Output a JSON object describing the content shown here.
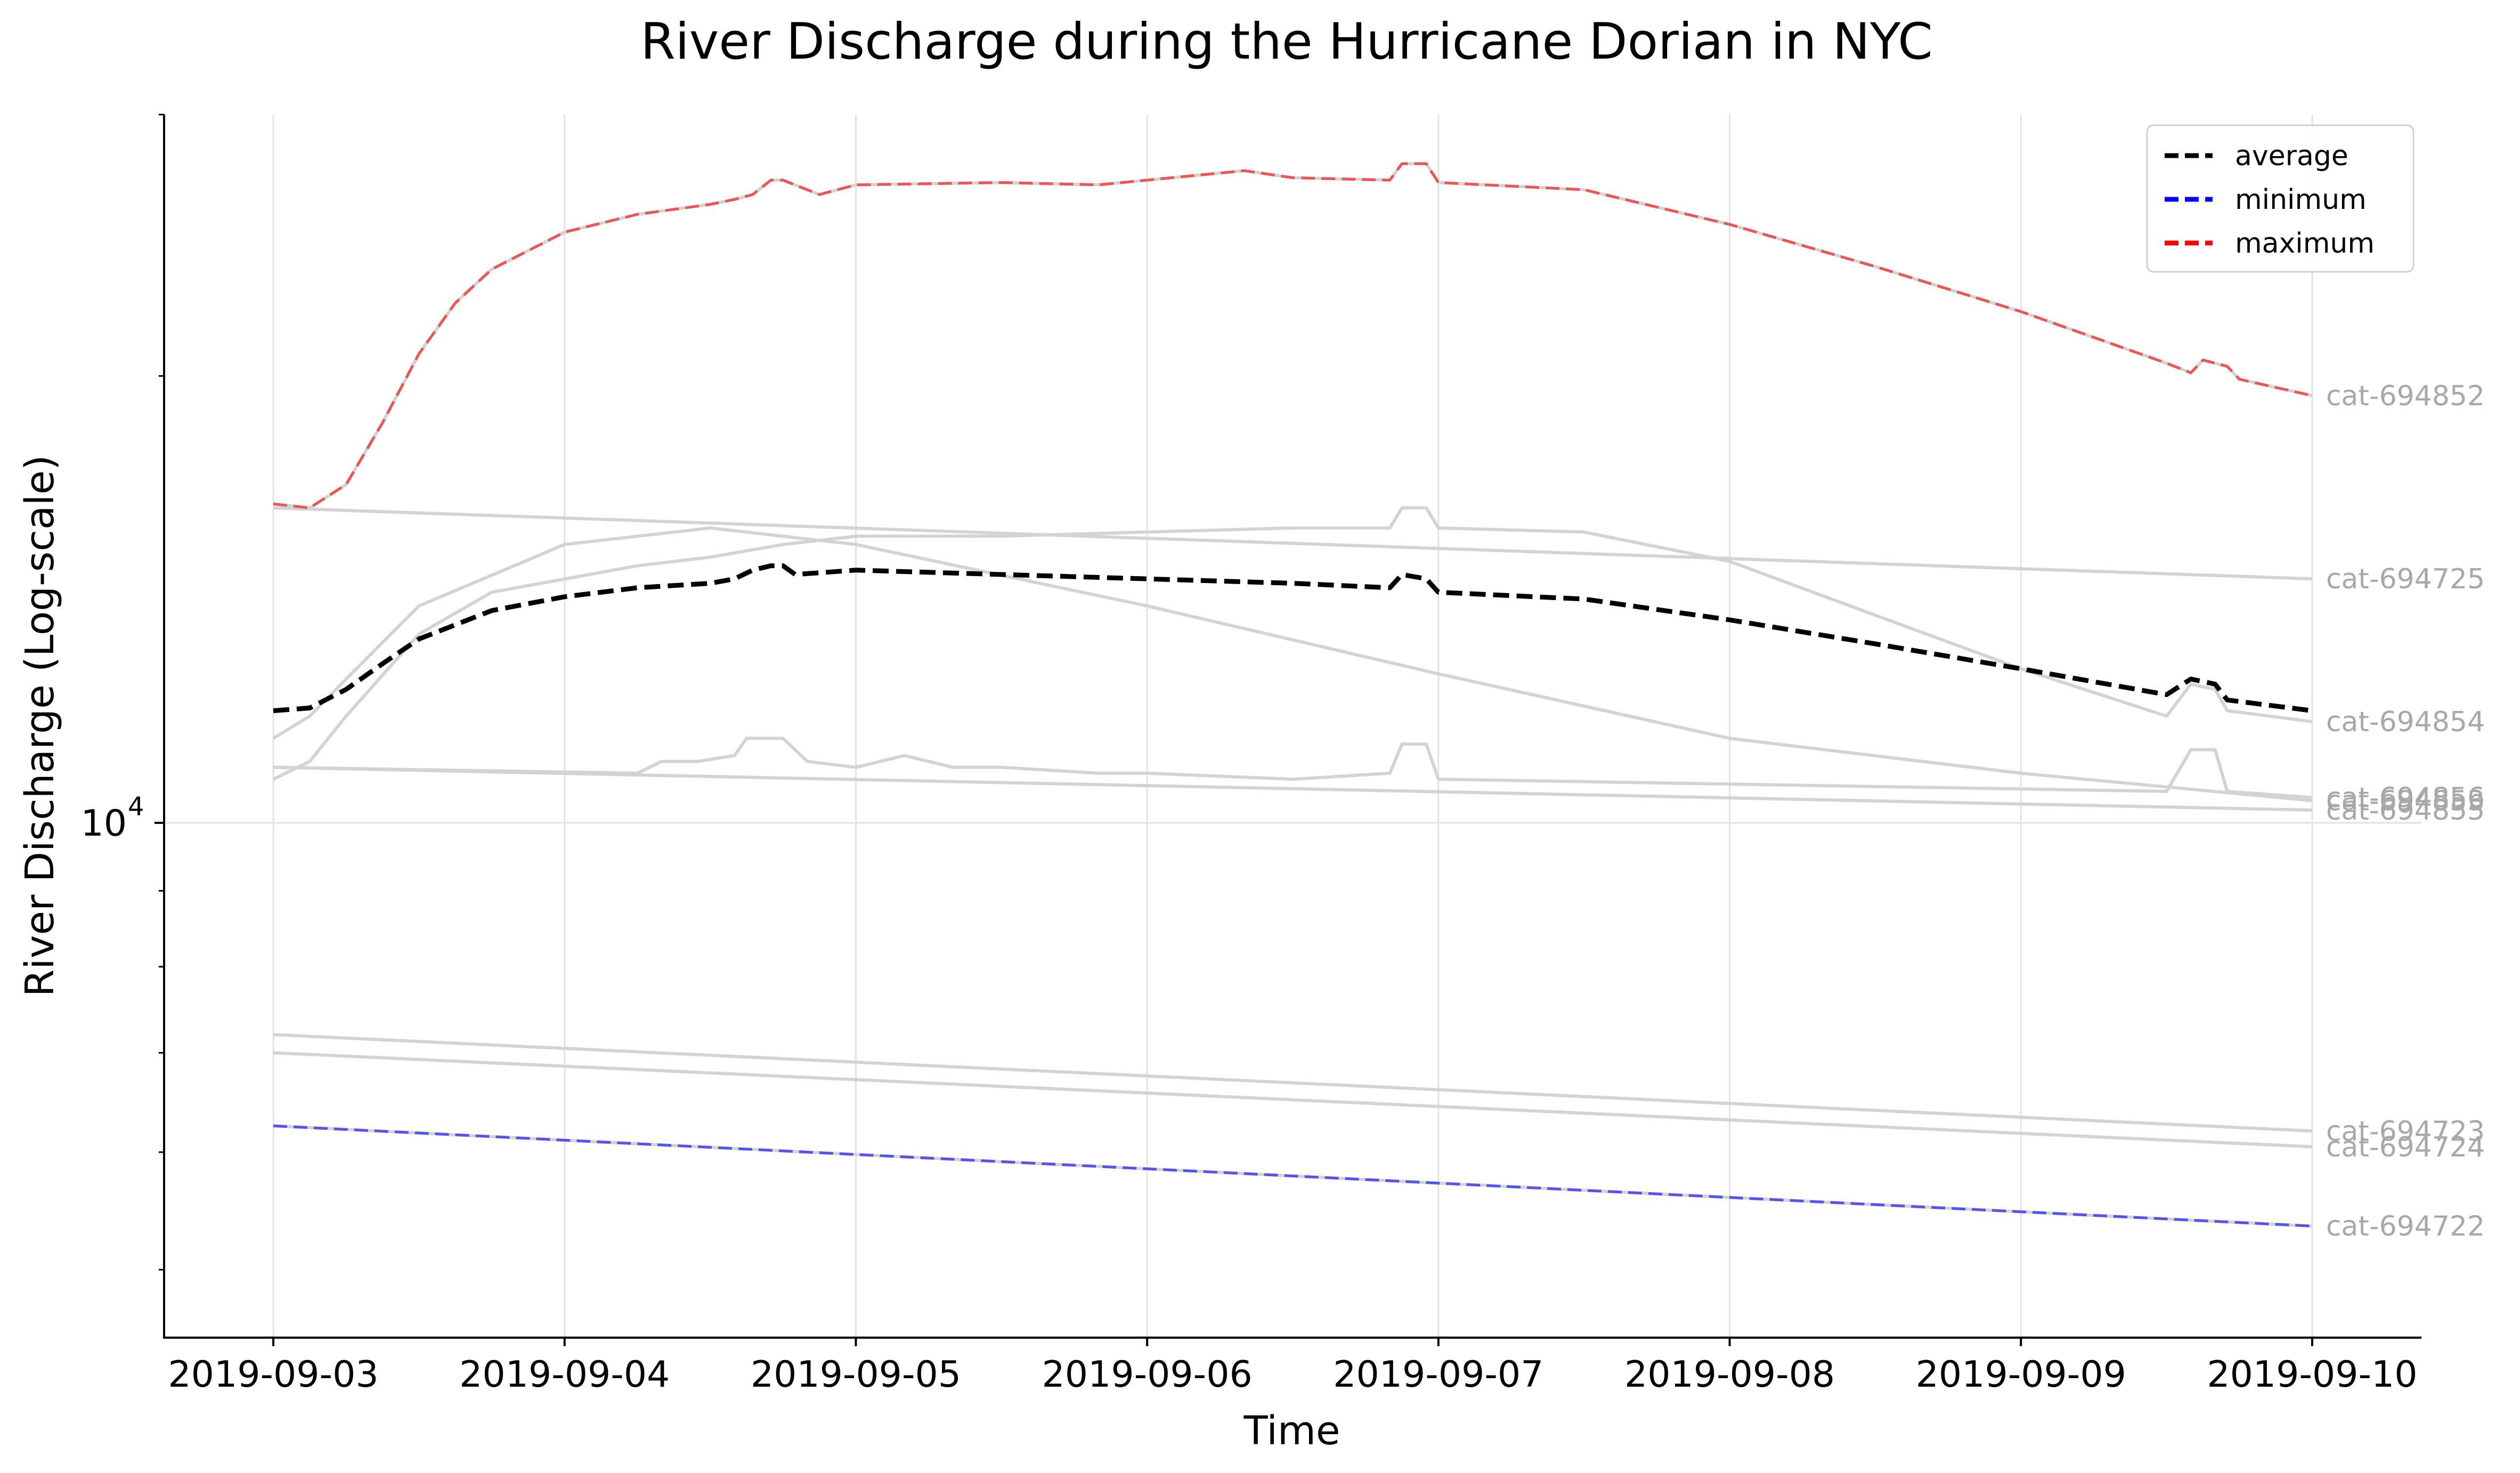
{
  "chart_data": {
    "type": "line",
    "title": "River Discharge during the Hurricane Dorian in NYC",
    "xlabel": "Time",
    "ylabel": "River Discharge (Log-scale)",
    "yscale": "log",
    "ylim": [
      4500,
      30000
    ],
    "xlim": [
      "2019-09-02T15:00",
      "2019-09-10T09:00"
    ],
    "x_ticks": [
      "2019-09-03",
      "2019-09-04",
      "2019-09-05",
      "2019-09-06",
      "2019-09-07",
      "2019-09-08",
      "2019-09-09",
      "2019-09-10"
    ],
    "y_ticks": [
      {
        "value": 10000,
        "base": "10",
        "exp": "4"
      }
    ],
    "grid": true,
    "legend": {
      "position": "top-right",
      "entries": [
        {
          "label": "average",
          "color": "#000000"
        },
        {
          "label": "minimum",
          "color": "#0000ff"
        },
        {
          "label": "maximum",
          "color": "#ff0000"
        }
      ]
    },
    "series": [
      {
        "name": "cat-694852",
        "color": "#d3d3d3",
        "dash": false,
        "points": [
          [
            "2019-09-03T00:00",
            16400
          ],
          [
            "2019-09-03T03:00",
            16300
          ],
          [
            "2019-09-03T06:00",
            16900
          ],
          [
            "2019-09-03T09:00",
            18600
          ],
          [
            "2019-09-03T12:00",
            20700
          ],
          [
            "2019-09-03T15:00",
            22400
          ],
          [
            "2019-09-03T18:00",
            23600
          ],
          [
            "2019-09-04T00:00",
            25000
          ],
          [
            "2019-09-04T06:00",
            25700
          ],
          [
            "2019-09-04T12:00",
            26100
          ],
          [
            "2019-09-04T14:00",
            26300
          ],
          [
            "2019-09-04T15:30",
            26500
          ],
          [
            "2019-09-04T17:00",
            27100
          ],
          [
            "2019-09-04T18:00",
            27100
          ],
          [
            "2019-09-04T21:00",
            26500
          ],
          [
            "2019-09-05T00:00",
            26900
          ],
          [
            "2019-09-05T12:00",
            27000
          ],
          [
            "2019-09-05T20:00",
            26900
          ],
          [
            "2019-09-06T00:00",
            27100
          ],
          [
            "2019-09-06T08:00",
            27500
          ],
          [
            "2019-09-06T12:00",
            27200
          ],
          [
            "2019-09-06T20:00",
            27100
          ],
          [
            "2019-09-06T21:00",
            27800
          ],
          [
            "2019-09-06T23:00",
            27800
          ],
          [
            "2019-09-07T00:00",
            27000
          ],
          [
            "2019-09-07T12:00",
            26700
          ],
          [
            "2019-09-08T00:00",
            25300
          ],
          [
            "2019-09-08T12:00",
            23700
          ],
          [
            "2019-09-09T00:00",
            22100
          ],
          [
            "2019-09-09T12:00",
            20400
          ],
          [
            "2019-09-09T14:00",
            20100
          ],
          [
            "2019-09-09T15:00",
            20500
          ],
          [
            "2019-09-09T17:00",
            20300
          ],
          [
            "2019-09-09T18:00",
            19900
          ],
          [
            "2019-09-10T00:00",
            19400
          ]
        ]
      },
      {
        "name": "cat-694725",
        "color": "#d3d3d3",
        "dash": false,
        "points": [
          [
            "2019-09-03T00:00",
            16300
          ],
          [
            "2019-09-10T00:00",
            14600
          ]
        ]
      },
      {
        "name": "cat-694853",
        "color": "#d3d3d3",
        "dash": false,
        "points": [
          [
            "2019-09-03T00:00",
            11400
          ],
          [
            "2019-09-03T03:00",
            11800
          ],
          [
            "2019-09-03T06:00",
            12500
          ],
          [
            "2019-09-03T12:00",
            14000
          ],
          [
            "2019-09-04T00:00",
            15400
          ],
          [
            "2019-09-04T12:00",
            15800
          ],
          [
            "2019-09-05T00:00",
            15400
          ],
          [
            "2019-09-06T00:00",
            14000
          ],
          [
            "2019-09-07T00:00",
            12600
          ],
          [
            "2019-09-08T00:00",
            11400
          ],
          [
            "2019-09-09T00:00",
            10800
          ],
          [
            "2019-09-10T00:00",
            10350
          ]
        ]
      },
      {
        "name": "cat-694856",
        "color": "#d3d3d3",
        "dash": false,
        "points": [
          [
            "2019-09-03T00:00",
            10900
          ],
          [
            "2019-09-04T06:00",
            10800
          ],
          [
            "2019-09-04T08:00",
            11000
          ],
          [
            "2019-09-04T11:00",
            11000
          ],
          [
            "2019-09-04T14:00",
            11100
          ],
          [
            "2019-09-04T15:00",
            11400
          ],
          [
            "2019-09-04T18:00",
            11400
          ],
          [
            "2019-09-04T20:00",
            11000
          ],
          [
            "2019-09-05T00:00",
            10900
          ],
          [
            "2019-09-05T04:00",
            11100
          ],
          [
            "2019-09-05T08:00",
            10900
          ],
          [
            "2019-09-05T12:00",
            10900
          ],
          [
            "2019-09-05T20:00",
            10800
          ],
          [
            "2019-09-06T00:00",
            10800
          ],
          [
            "2019-09-06T12:00",
            10700
          ],
          [
            "2019-09-06T20:00",
            10800
          ],
          [
            "2019-09-06T21:00",
            11300
          ],
          [
            "2019-09-06T23:00",
            11300
          ],
          [
            "2019-09-07T00:00",
            10700
          ],
          [
            "2019-09-09T12:00",
            10500
          ],
          [
            "2019-09-09T14:00",
            11200
          ],
          [
            "2019-09-09T16:00",
            11200
          ],
          [
            "2019-09-09T17:00",
            10500
          ],
          [
            "2019-09-10T00:00",
            10400
          ]
        ]
      },
      {
        "name": "cat-694854",
        "color": "#d3d3d3",
        "dash": false,
        "points": [
          [
            "2019-09-03T00:00",
            10700
          ],
          [
            "2019-09-03T03:00",
            11000
          ],
          [
            "2019-09-03T06:00",
            11800
          ],
          [
            "2019-09-03T12:00",
            13400
          ],
          [
            "2019-09-03T18:00",
            14300
          ],
          [
            "2019-09-04T06:00",
            14900
          ],
          [
            "2019-09-04T12:00",
            15100
          ],
          [
            "2019-09-04T18:00",
            15400
          ],
          [
            "2019-09-05T00:00",
            15600
          ],
          [
            "2019-09-05T12:00",
            15600
          ],
          [
            "2019-09-06T00:00",
            15700
          ],
          [
            "2019-09-06T12:00",
            15800
          ],
          [
            "2019-09-06T20:00",
            15800
          ],
          [
            "2019-09-06T21:00",
            16300
          ],
          [
            "2019-09-06T23:00",
            16300
          ],
          [
            "2019-09-07T00:00",
            15800
          ],
          [
            "2019-09-07T12:00",
            15700
          ],
          [
            "2019-09-08T00:00",
            15000
          ],
          [
            "2019-09-08T12:00",
            13800
          ],
          [
            "2019-09-09T00:00",
            12700
          ],
          [
            "2019-09-09T12:00",
            11800
          ],
          [
            "2019-09-09T14:00",
            12400
          ],
          [
            "2019-09-09T16:00",
            12300
          ],
          [
            "2019-09-09T17:00",
            11900
          ],
          [
            "2019-09-10T00:00",
            11700
          ]
        ]
      },
      {
        "name": "cat-694855",
        "color": "#d3d3d3",
        "dash": false,
        "points": [
          [
            "2019-09-03T00:00",
            10900
          ],
          [
            "2019-09-10T00:00",
            10200
          ]
        ]
      },
      {
        "name": "cat-694723",
        "color": "#d3d3d3",
        "dash": false,
        "points": [
          [
            "2019-09-03T00:00",
            7200
          ],
          [
            "2019-09-10T00:00",
            6200
          ]
        ]
      },
      {
        "name": "cat-694724",
        "color": "#d3d3d3",
        "dash": false,
        "points": [
          [
            "2019-09-03T00:00",
            7000
          ],
          [
            "2019-09-10T00:00",
            6050
          ]
        ]
      },
      {
        "name": "cat-694722",
        "color": "#d3d3d3",
        "dash": false,
        "points": [
          [
            "2019-09-03T00:00",
            6250
          ],
          [
            "2019-09-10T00:00",
            5350
          ]
        ]
      },
      {
        "name": "minimum",
        "color": "#0000ff",
        "dash": true,
        "points": [
          [
            "2019-09-03T00:00",
            6250
          ],
          [
            "2019-09-10T00:00",
            5350
          ]
        ]
      },
      {
        "name": "maximum",
        "color": "#ff0000",
        "dash": true,
        "points": [
          [
            "2019-09-03T00:00",
            16400
          ],
          [
            "2019-09-03T03:00",
            16300
          ],
          [
            "2019-09-03T06:00",
            16900
          ],
          [
            "2019-09-03T09:00",
            18600
          ],
          [
            "2019-09-03T12:00",
            20700
          ],
          [
            "2019-09-03T15:00",
            22400
          ],
          [
            "2019-09-03T18:00",
            23600
          ],
          [
            "2019-09-04T00:00",
            25000
          ],
          [
            "2019-09-04T06:00",
            25700
          ],
          [
            "2019-09-04T12:00",
            26100
          ],
          [
            "2019-09-04T14:00",
            26300
          ],
          [
            "2019-09-04T15:30",
            26500
          ],
          [
            "2019-09-04T17:00",
            27100
          ],
          [
            "2019-09-04T18:00",
            27100
          ],
          [
            "2019-09-04T21:00",
            26500
          ],
          [
            "2019-09-05T00:00",
            26900
          ],
          [
            "2019-09-05T12:00",
            27000
          ],
          [
            "2019-09-05T20:00",
            26900
          ],
          [
            "2019-09-06T00:00",
            27100
          ],
          [
            "2019-09-06T08:00",
            27500
          ],
          [
            "2019-09-06T12:00",
            27200
          ],
          [
            "2019-09-06T20:00",
            27100
          ],
          [
            "2019-09-06T21:00",
            27800
          ],
          [
            "2019-09-06T23:00",
            27800
          ],
          [
            "2019-09-07T00:00",
            27000
          ],
          [
            "2019-09-07T12:00",
            26700
          ],
          [
            "2019-09-08T00:00",
            25300
          ],
          [
            "2019-09-08T12:00",
            23700
          ],
          [
            "2019-09-09T00:00",
            22100
          ],
          [
            "2019-09-09T12:00",
            20400
          ],
          [
            "2019-09-09T14:00",
            20100
          ],
          [
            "2019-09-09T15:00",
            20500
          ],
          [
            "2019-09-09T17:00",
            20300
          ],
          [
            "2019-09-09T18:00",
            19900
          ],
          [
            "2019-09-10T00:00",
            19400
          ]
        ]
      },
      {
        "name": "average",
        "color": "#000000",
        "dash": true,
        "points": [
          [
            "2019-09-03T00:00",
            11900
          ],
          [
            "2019-09-03T03:00",
            11950
          ],
          [
            "2019-09-03T06:00",
            12300
          ],
          [
            "2019-09-03T09:00",
            12800
          ],
          [
            "2019-09-03T12:00",
            13300
          ],
          [
            "2019-09-03T18:00",
            13900
          ],
          [
            "2019-09-04T00:00",
            14200
          ],
          [
            "2019-09-04T06:00",
            14400
          ],
          [
            "2019-09-04T12:00",
            14500
          ],
          [
            "2019-09-04T14:00",
            14600
          ],
          [
            "2019-09-04T15:30",
            14800
          ],
          [
            "2019-09-04T17:00",
            14900
          ],
          [
            "2019-09-04T18:00",
            14900
          ],
          [
            "2019-09-04T19:00",
            14700
          ],
          [
            "2019-09-05T00:00",
            14800
          ],
          [
            "2019-09-05T12:00",
            14700
          ],
          [
            "2019-09-06T00:00",
            14600
          ],
          [
            "2019-09-06T12:00",
            14500
          ],
          [
            "2019-09-06T20:00",
            14400
          ],
          [
            "2019-09-06T21:00",
            14700
          ],
          [
            "2019-09-06T23:00",
            14600
          ],
          [
            "2019-09-07T00:00",
            14300
          ],
          [
            "2019-09-07T12:00",
            14150
          ],
          [
            "2019-09-08T00:00",
            13700
          ],
          [
            "2019-09-08T12:00",
            13200
          ],
          [
            "2019-09-09T00:00",
            12700
          ],
          [
            "2019-09-09T12:00",
            12200
          ],
          [
            "2019-09-09T14:00",
            12500
          ],
          [
            "2019-09-09T16:00",
            12400
          ],
          [
            "2019-09-09T17:00",
            12100
          ],
          [
            "2019-09-10T00:00",
            11900
          ]
        ]
      }
    ]
  }
}
